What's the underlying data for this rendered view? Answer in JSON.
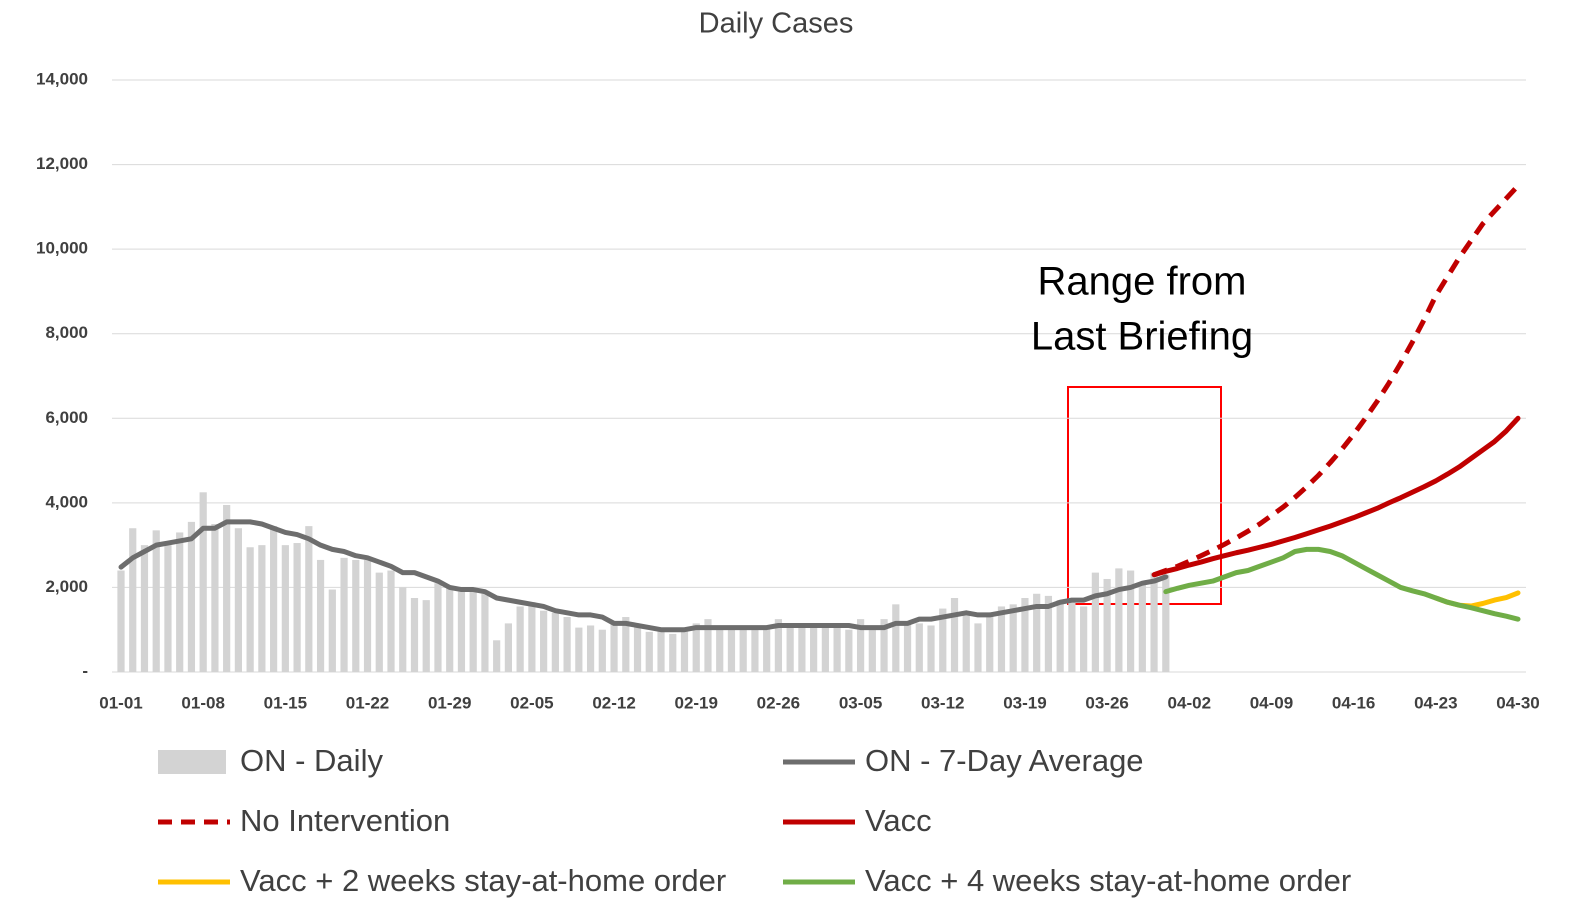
{
  "chart_data": {
    "type": "bar-line",
    "title": "Daily Cases",
    "annotation": [
      "Range from",
      "Last Briefing"
    ],
    "categories": [
      "01-01",
      null,
      null,
      null,
      null,
      null,
      null,
      "01-08",
      null,
      null,
      null,
      null,
      null,
      null,
      "01-15",
      null,
      null,
      null,
      null,
      null,
      null,
      "01-22",
      null,
      null,
      null,
      null,
      null,
      null,
      "01-29",
      null,
      null,
      null,
      null,
      null,
      null,
      "02-05",
      null,
      null,
      null,
      null,
      null,
      null,
      "02-12",
      null,
      null,
      null,
      null,
      null,
      null,
      "02-19",
      null,
      null,
      null,
      null,
      null,
      null,
      "02-26",
      null,
      null,
      null,
      null,
      null,
      null,
      "03-05",
      null,
      null,
      null,
      null,
      null,
      null,
      "03-12",
      null,
      null,
      null,
      null,
      null,
      null,
      "03-19",
      null,
      null,
      null,
      null,
      null,
      null,
      "03-26",
      null,
      null,
      null,
      null,
      null,
      null,
      "04-02",
      null,
      null,
      null,
      null,
      null,
      null,
      "04-09",
      null,
      null,
      null,
      null,
      null,
      null,
      "04-16",
      null,
      null,
      null,
      null,
      null,
      null,
      "04-23",
      null,
      null,
      null,
      null,
      null,
      null,
      "04-30"
    ],
    "ylim": [
      0,
      14000
    ],
    "yticks": [
      {
        "value": 0,
        "label": "-"
      },
      {
        "value": 2000,
        "label": "2,000"
      },
      {
        "value": 4000,
        "label": "4,000"
      },
      {
        "value": 6000,
        "label": "6,000"
      },
      {
        "value": 8000,
        "label": "8,000"
      },
      {
        "value": 10000,
        "label": "10,000"
      },
      {
        "value": 12000,
        "label": "12,000"
      },
      {
        "value": 14000,
        "label": "14,000"
      }
    ],
    "grid": true,
    "legend": "bottom",
    "series": [
      {
        "name": "ON - Daily",
        "kind": "bar",
        "color": "#d3d3d3",
        "values": [
          2400,
          3400,
          3000,
          3350,
          3000,
          3300,
          3550,
          4250,
          3500,
          3950,
          3400,
          2950,
          3000,
          3450,
          3000,
          3050,
          3450,
          2650,
          1950,
          2700,
          2650,
          2650,
          2350,
          2400,
          2000,
          1750,
          1700,
          2100,
          2000,
          1900,
          1900,
          1850,
          750,
          1150,
          1550,
          1650,
          1450,
          1400,
          1300,
          1050,
          1100,
          1000,
          1150,
          1300,
          1100,
          950,
          1000,
          900,
          1000,
          1150,
          1250,
          1050,
          1000,
          1050,
          1000,
          1050,
          1250,
          1100,
          1150,
          1050,
          1100,
          1050,
          1000,
          1250,
          1050,
          1250,
          1600,
          1200,
          1150,
          1100,
          1500,
          1750,
          1350,
          1150,
          1350,
          1550,
          1600,
          1750,
          1850,
          1800,
          1700,
          1750,
          1550,
          2350,
          2200,
          2450,
          2400,
          2100,
          2350,
          2300,
          null,
          null,
          null,
          null,
          null,
          null,
          null,
          null,
          null,
          null,
          null,
          null,
          null,
          null,
          null,
          null,
          null,
          null,
          null,
          null,
          null,
          null,
          null,
          null,
          null,
          null,
          null,
          null,
          null,
          null
        ]
      },
      {
        "name": "ON - 7-Day Average",
        "kind": "line",
        "color": "#6d6d6d",
        "values": [
          2480,
          2700,
          2850,
          3000,
          3050,
          3100,
          3150,
          3400,
          3400,
          3550,
          3550,
          3550,
          3500,
          3400,
          3300,
          3250,
          3150,
          3000,
          2900,
          2850,
          2750,
          2700,
          2600,
          2500,
          2350,
          2350,
          2250,
          2150,
          2000,
          1950,
          1950,
          1900,
          1750,
          1700,
          1650,
          1600,
          1550,
          1450,
          1400,
          1350,
          1350,
          1300,
          1150,
          1150,
          1100,
          1050,
          1000,
          1000,
          1000,
          1050,
          1050,
          1050,
          1050,
          1050,
          1050,
          1050,
          1100,
          1100,
          1100,
          1100,
          1100,
          1100,
          1100,
          1050,
          1050,
          1050,
          1150,
          1150,
          1250,
          1250,
          1300,
          1350,
          1400,
          1350,
          1350,
          1400,
          1450,
          1500,
          1550,
          1550,
          1650,
          1700,
          1700,
          1800,
          1850,
          1950,
          2000,
          2100,
          2150,
          2250,
          null,
          null,
          null,
          null,
          null,
          null,
          null,
          null,
          null,
          null,
          null,
          null,
          null,
          null,
          null,
          null,
          null,
          null,
          null,
          null,
          null,
          null,
          null,
          null,
          null,
          null,
          null,
          null,
          null,
          null
        ]
      },
      {
        "name": "No Intervention",
        "kind": "line",
        "dash": "dashed",
        "color": "#c00000",
        "values": [
          null,
          null,
          null,
          null,
          null,
          null,
          null,
          null,
          null,
          null,
          null,
          null,
          null,
          null,
          null,
          null,
          null,
          null,
          null,
          null,
          null,
          null,
          null,
          null,
          null,
          null,
          null,
          null,
          null,
          null,
          null,
          null,
          null,
          null,
          null,
          null,
          null,
          null,
          null,
          null,
          null,
          null,
          null,
          null,
          null,
          null,
          null,
          null,
          null,
          null,
          null,
          null,
          null,
          null,
          null,
          null,
          null,
          null,
          null,
          null,
          null,
          null,
          null,
          null,
          null,
          null,
          null,
          null,
          null,
          null,
          null,
          null,
          null,
          null,
          null,
          null,
          null,
          null,
          null,
          null,
          null,
          null,
          null,
          null,
          null,
          null,
          null,
          null,
          2300,
          2400,
          2500,
          2620,
          2750,
          2880,
          3020,
          3170,
          3330,
          3500,
          3700,
          3900,
          4130,
          4380,
          4650,
          4950,
          5270,
          5620,
          6000,
          6400,
          6830,
          7300,
          7800,
          8330,
          8900,
          9350,
          9800,
          10200,
          10600,
          10900,
          11200,
          11500
        ]
      },
      {
        "name": "Vacc",
        "kind": "line",
        "color": "#c00000",
        "values": [
          null,
          null,
          null,
          null,
          null,
          null,
          null,
          null,
          null,
          null,
          null,
          null,
          null,
          null,
          null,
          null,
          null,
          null,
          null,
          null,
          null,
          null,
          null,
          null,
          null,
          null,
          null,
          null,
          null,
          null,
          null,
          null,
          null,
          null,
          null,
          null,
          null,
          null,
          null,
          null,
          null,
          null,
          null,
          null,
          null,
          null,
          null,
          null,
          null,
          null,
          null,
          null,
          null,
          null,
          null,
          null,
          null,
          null,
          null,
          null,
          null,
          null,
          null,
          null,
          null,
          null,
          null,
          null,
          null,
          null,
          null,
          null,
          null,
          null,
          null,
          null,
          null,
          null,
          null,
          null,
          null,
          null,
          null,
          null,
          null,
          null,
          null,
          null,
          2300,
          2380,
          2450,
          2530,
          2600,
          2680,
          2750,
          2820,
          2880,
          2950,
          3020,
          3100,
          3180,
          3270,
          3360,
          3450,
          3550,
          3650,
          3760,
          3870,
          4000,
          4120,
          4250,
          4380,
          4520,
          4680,
          4850,
          5050,
          5250,
          5450,
          5700,
          6000
        ]
      },
      {
        "name": "Vacc + 2 weeks stay-at-home order",
        "kind": "line",
        "color": "#ffc000",
        "values": [
          null,
          null,
          null,
          null,
          null,
          null,
          null,
          null,
          null,
          null,
          null,
          null,
          null,
          null,
          null,
          null,
          null,
          null,
          null,
          null,
          null,
          null,
          null,
          null,
          null,
          null,
          null,
          null,
          null,
          null,
          null,
          null,
          null,
          null,
          null,
          null,
          null,
          null,
          null,
          null,
          null,
          null,
          null,
          null,
          null,
          null,
          null,
          null,
          null,
          null,
          null,
          null,
          null,
          null,
          null,
          null,
          null,
          null,
          null,
          null,
          null,
          null,
          null,
          null,
          null,
          null,
          null,
          null,
          null,
          null,
          null,
          null,
          null,
          null,
          null,
          null,
          null,
          null,
          null,
          null,
          null,
          null,
          null,
          null,
          null,
          null,
          null,
          null,
          null,
          null,
          null,
          null,
          null,
          null,
          null,
          null,
          null,
          null,
          null,
          null,
          null,
          null,
          null,
          null,
          null,
          null,
          null,
          null,
          null,
          null,
          null,
          null,
          1750,
          1650,
          1580,
          1560,
          1620,
          1700,
          1760,
          1870
        ]
      },
      {
        "name": "Vacc + 4 weeks stay-at-home order",
        "kind": "line",
        "color": "#70ad47",
        "values": [
          null,
          null,
          null,
          null,
          null,
          null,
          null,
          null,
          null,
          null,
          null,
          null,
          null,
          null,
          null,
          null,
          null,
          null,
          null,
          null,
          null,
          null,
          null,
          null,
          null,
          null,
          null,
          null,
          null,
          null,
          null,
          null,
          null,
          null,
          null,
          null,
          null,
          null,
          null,
          null,
          null,
          null,
          null,
          null,
          null,
          null,
          null,
          null,
          null,
          null,
          null,
          null,
          null,
          null,
          null,
          null,
          null,
          null,
          null,
          null,
          null,
          null,
          null,
          null,
          null,
          null,
          null,
          null,
          null,
          null,
          null,
          null,
          null,
          null,
          null,
          null,
          null,
          null,
          null,
          null,
          null,
          null,
          null,
          null,
          null,
          null,
          null,
          null,
          null,
          1900,
          1980,
          2050,
          2100,
          2150,
          2250,
          2350,
          2400,
          2500,
          2600,
          2700,
          2850,
          2900,
          2900,
          2850,
          2750,
          2600,
          2450,
          2300,
          2150,
          2000,
          1920,
          1850,
          1750,
          1650,
          1580,
          1520,
          1450,
          1380,
          1320,
          1250
        ]
      }
    ]
  }
}
